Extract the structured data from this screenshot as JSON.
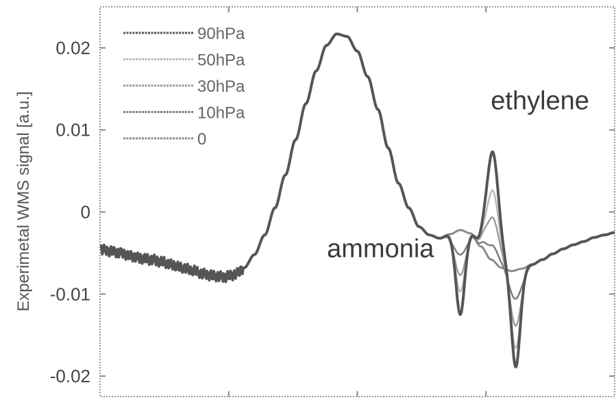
{
  "chart_data": {
    "type": "line",
    "title": "",
    "xlabel": "",
    "ylabel": "Experimetal WMS signal [a.u.]",
    "xlim": [
      0,
      100
    ],
    "ylim": [
      -0.0225,
      0.025
    ],
    "yticks": [
      0.02,
      0.01,
      0,
      -0.01,
      -0.02
    ],
    "ytick_labels": [
      "0.02",
      "0.01",
      "0",
      "-0.01",
      "-0.02"
    ],
    "xticks": [
      25,
      50,
      75
    ],
    "grid": false,
    "legend_position": "top-left",
    "annotations": [
      {
        "text": "ethylene",
        "x": 85.5,
        "y": 0.0125
      },
      {
        "text": "ammonia",
        "x": 54.5,
        "y": -0.0055
      }
    ],
    "base_curve": {
      "x": [
        0,
        2,
        4,
        6,
        8,
        10,
        12,
        14,
        16,
        18,
        20,
        22,
        24,
        26,
        28,
        30,
        32,
        34,
        36,
        38,
        40,
        42,
        44,
        46,
        48,
        50,
        52,
        54,
        56,
        58,
        60,
        62,
        64,
        66,
        68,
        70,
        72,
        74,
        76,
        78,
        80,
        82,
        84,
        86,
        88,
        90,
        92,
        94,
        96,
        98,
        100
      ],
      "y": [
        -0.0045,
        -0.0047,
        -0.0049,
        -0.0053,
        -0.0056,
        -0.0058,
        -0.0061,
        -0.0065,
        -0.0069,
        -0.0072,
        -0.0076,
        -0.0078,
        -0.0079,
        -0.0076,
        -0.0068,
        -0.0052,
        -0.0028,
        0.0005,
        0.0045,
        0.0088,
        0.0132,
        0.0172,
        0.0203,
        0.0217,
        0.0214,
        0.0196,
        0.0165,
        0.0125,
        0.0078,
        0.0035,
        0.0005,
        -0.0018,
        -0.0028,
        -0.0032,
        -0.0027,
        -0.0022,
        -0.0026,
        -0.0042,
        -0.0058,
        -0.0068,
        -0.0072,
        -0.0069,
        -0.0064,
        -0.0058,
        -0.0051,
        -0.0045,
        -0.004,
        -0.0036,
        -0.0031,
        -0.0028,
        -0.0025
      ]
    },
    "series": [
      {
        "name": "90hPa",
        "color": "#555555",
        "width": 4,
        "features": [
          {
            "x": 70.0,
            "amp": -0.0103,
            "sigma": 0.85
          },
          {
            "x": 76.3,
            "amp": 0.0132,
            "sigma": 1.2
          },
          {
            "x": 80.8,
            "amp": -0.0118,
            "sigma": 0.85
          }
        ]
      },
      {
        "name": "50hPa",
        "color": "#b8b8b8",
        "width": 2.4,
        "features": [
          {
            "x": 70.0,
            "amp": -0.0075,
            "sigma": 0.95
          },
          {
            "x": 76.3,
            "amp": 0.0085,
            "sigma": 1.25
          },
          {
            "x": 80.8,
            "amp": -0.0095,
            "sigma": 0.95
          }
        ]
      },
      {
        "name": "30hPa",
        "color": "#9a9a9a",
        "width": 2.4,
        "features": [
          {
            "x": 70.0,
            "amp": -0.0055,
            "sigma": 1.05
          },
          {
            "x": 76.3,
            "amp": 0.0052,
            "sigma": 1.35
          },
          {
            "x": 80.8,
            "amp": -0.0068,
            "sigma": 1.05
          }
        ]
      },
      {
        "name": "10hPa",
        "color": "#7a7a7a",
        "width": 2.4,
        "features": [
          {
            "x": 70.0,
            "amp": -0.003,
            "sigma": 1.2
          },
          {
            "x": 76.3,
            "amp": 0.0018,
            "sigma": 1.4
          },
          {
            "x": 80.8,
            "amp": -0.0035,
            "sigma": 1.2
          }
        ]
      },
      {
        "name": "0",
        "color": "#8a8a8a",
        "width": 3,
        "features": []
      }
    ]
  }
}
